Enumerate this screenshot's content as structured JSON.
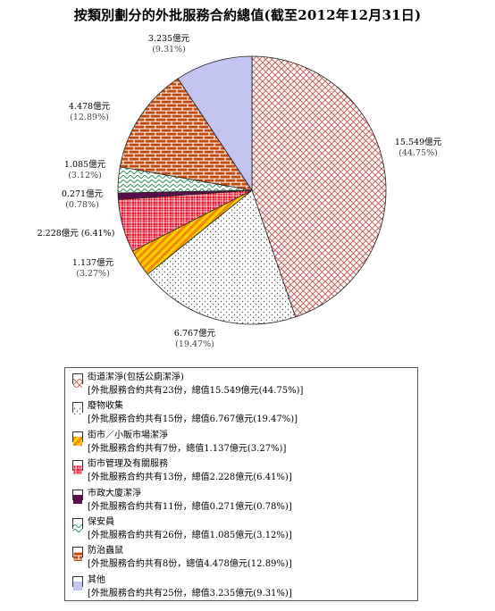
{
  "chart_data": {
    "type": "pie",
    "title": "按類別劃分的外批服務合約總值(截至2012年12月31日)",
    "slices": [
      {
        "name": "街道潔淨(包括公廁潔淨)",
        "value": 15.549,
        "value_label": "15.549億元",
        "percent_label": "(44.75%)",
        "contracts": 23,
        "detail": "[外批服務合約共有23份，總值15.549億元(44.75%)]",
        "color": "#c0504d",
        "pattern": "crosshatch"
      },
      {
        "name": "廢物收集",
        "value": 6.767,
        "value_label": "6.767億元",
        "percent_label": "(19.47%)",
        "contracts": 15,
        "detail": "[外批服務合約共有15份，總值6.767億元(19.47%)]",
        "color": "#555555",
        "pattern": "dots"
      },
      {
        "name": "街市／小販市場潔淨",
        "value": 1.137,
        "value_label": "1.137億元",
        "percent_label": "(3.27%)",
        "contracts": 7,
        "detail": "[外批服務合約共有7份，總值1.137億元(3.27%)]",
        "color": "#f2a100",
        "pattern": "stripes"
      },
      {
        "name": "街市管理及有關服務",
        "value": 2.228,
        "value_label": "2.228億元 (6.41%)",
        "percent_label": "",
        "contracts": 13,
        "detail": "[外批服務合約共有13份，總值2.228億元(6.41%)]",
        "color": "#e8102a",
        "pattern": "grid"
      },
      {
        "name": "市政大廈潔淨",
        "value": 0.271,
        "value_label": "0.271億元",
        "percent_label": "(0.78%)",
        "contracts": 11,
        "detail": "[外批服務合約共有11份，總值0.271億元(0.78%)]",
        "color": "#5a0f4d",
        "pattern": "solid"
      },
      {
        "name": "保安員",
        "value": 1.085,
        "value_label": "1.085億元",
        "percent_label": "(3.12%)",
        "contracts": 26,
        "detail": "[外批服務合約共有26份，總值1.085億元(3.12%)]",
        "color": "#2e8b57",
        "pattern": "waves"
      },
      {
        "name": "防治蟲鼠",
        "value": 4.478,
        "value_label": "4.478億元",
        "percent_label": "(12.89%)",
        "contracts": 8,
        "detail": "[外批服務合約共有8份，總值4.478億元(12.89%)]",
        "color": "#c24a0e",
        "pattern": "brick"
      },
      {
        "name": "其他",
        "value": 3.235,
        "value_label": "3.235億元",
        "percent_label": "(9.31%)",
        "contracts": 25,
        "detail": "[外批服務合約共有25份，總值3.235億元(9.31%)]",
        "color": "#c3c5f0",
        "pattern": "solid"
      }
    ],
    "legend_position": "bottom"
  }
}
